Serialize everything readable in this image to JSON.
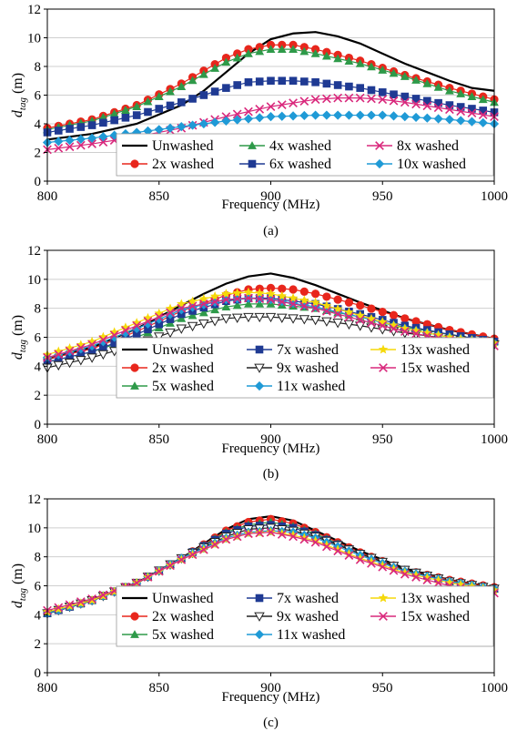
{
  "chart_data": [
    {
      "type": "line",
      "caption": "(a)",
      "xlabel": "Frequency (MHz)",
      "ylabel_main": "d",
      "ylabel_sub": "tag",
      "ylabel_unit": " (m)",
      "xlim": [
        800,
        1000
      ],
      "ylim": [
        0,
        12
      ],
      "xticks": [
        800,
        850,
        900,
        950,
        1000
      ],
      "yticks": [
        0,
        2,
        4,
        6,
        8,
        10,
        12
      ],
      "grid": "horizontal",
      "legend_columns": [
        [
          "Unwashed",
          "2x washed"
        ],
        [
          "4x washed",
          "6x washed"
        ],
        [
          "8x washed",
          "10x washed"
        ]
      ],
      "series": [
        {
          "name": "Unwashed",
          "color": "#000000",
          "marker": "none",
          "x": [
            800,
            820,
            840,
            860,
            870,
            880,
            890,
            900,
            910,
            920,
            930,
            940,
            950,
            960,
            970,
            980,
            990,
            1000
          ],
          "y": [
            2.9,
            3.3,
            4.0,
            5.3,
            6.3,
            7.6,
            8.9,
            9.9,
            10.3,
            10.4,
            10.1,
            9.6,
            8.9,
            8.2,
            7.6,
            7.0,
            6.5,
            6.3
          ]
        },
        {
          "name": "2x washed",
          "color": "#e8261c",
          "marker": "circle",
          "x": [
            800,
            820,
            840,
            860,
            880,
            890,
            900,
            910,
            920,
            940,
            960,
            980,
            1000
          ],
          "y": [
            3.7,
            4.3,
            5.3,
            6.8,
            8.6,
            9.2,
            9.5,
            9.5,
            9.2,
            8.4,
            7.4,
            6.5,
            5.7
          ]
        },
        {
          "name": "4x washed",
          "color": "#2e9a49",
          "marker": "triangle-up",
          "x": [
            800,
            820,
            840,
            860,
            880,
            890,
            900,
            910,
            920,
            940,
            960,
            980,
            1000
          ],
          "y": [
            3.6,
            4.2,
            5.2,
            6.6,
            8.3,
            8.9,
            9.2,
            9.2,
            8.9,
            8.2,
            7.3,
            6.3,
            5.5
          ]
        },
        {
          "name": "6x washed",
          "color": "#1f3a93",
          "marker": "square",
          "x": [
            800,
            820,
            840,
            860,
            880,
            890,
            900,
            910,
            920,
            940,
            960,
            980,
            1000
          ],
          "y": [
            3.4,
            3.9,
            4.6,
            5.5,
            6.5,
            6.9,
            7.0,
            7.0,
            6.9,
            6.5,
            5.9,
            5.3,
            4.8
          ]
        },
        {
          "name": "8x washed",
          "color": "#d9287c",
          "marker": "x",
          "x": [
            800,
            820,
            840,
            860,
            880,
            900,
            920,
            930,
            940,
            950,
            960,
            980,
            1000
          ],
          "y": [
            2.2,
            2.6,
            3.1,
            3.7,
            4.5,
            5.2,
            5.7,
            5.8,
            5.8,
            5.7,
            5.5,
            5.0,
            4.5
          ]
        },
        {
          "name": "10x washed",
          "color": "#1f9ad6",
          "marker": "diamond",
          "x": [
            800,
            820,
            840,
            860,
            880,
            900,
            920,
            940,
            950,
            960,
            980,
            1000
          ],
          "y": [
            2.7,
            3.0,
            3.4,
            3.8,
            4.2,
            4.5,
            4.6,
            4.6,
            4.6,
            4.5,
            4.3,
            4.0
          ]
        }
      ]
    },
    {
      "type": "line",
      "caption": "(b)",
      "xlabel": "Frequency (MHz)",
      "ylabel_main": "d",
      "ylabel_sub": "tag",
      "ylabel_unit": " (m)",
      "xlim": [
        800,
        1000
      ],
      "ylim": [
        0,
        12
      ],
      "xticks": [
        800,
        850,
        900,
        950,
        1000
      ],
      "yticks": [
        0,
        2,
        4,
        6,
        8,
        10,
        12
      ],
      "grid": "horizontal",
      "legend_columns": [
        [
          "Unwashed",
          "2x washed",
          "5x washed"
        ],
        [
          "7x washed",
          "9x washed",
          "11x washed"
        ],
        [
          "13x washed",
          "15x washed"
        ]
      ],
      "series": [
        {
          "name": "Unwashed",
          "color": "#000000",
          "marker": "none",
          "x": [
            800,
            820,
            840,
            860,
            870,
            880,
            890,
            900,
            910,
            920,
            940,
            960,
            980,
            1000
          ],
          "y": [
            4.5,
            5.3,
            6.6,
            8.2,
            9.0,
            9.7,
            10.2,
            10.4,
            10.1,
            9.6,
            8.4,
            7.3,
            6.5,
            5.9
          ]
        },
        {
          "name": "2x washed",
          "color": "#e8261c",
          "marker": "circle",
          "x": [
            800,
            820,
            840,
            860,
            880,
            890,
            900,
            910,
            920,
            940,
            960,
            980,
            1000
          ],
          "y": [
            4.5,
            5.2,
            6.4,
            7.8,
            8.9,
            9.3,
            9.4,
            9.3,
            9.0,
            8.2,
            7.3,
            6.5,
            5.9
          ]
        },
        {
          "name": "5x washed",
          "color": "#2e9a49",
          "marker": "triangle-up",
          "x": [
            800,
            820,
            840,
            860,
            880,
            890,
            900,
            920,
            940,
            960,
            980,
            1000
          ],
          "y": [
            4.3,
            5.0,
            6.0,
            7.3,
            8.1,
            8.3,
            8.3,
            8.0,
            7.4,
            6.7,
            6.2,
            5.7
          ]
        },
        {
          "name": "7x washed",
          "color": "#1f3a93",
          "marker": "square",
          "x": [
            800,
            820,
            840,
            860,
            880,
            890,
            900,
            920,
            940,
            960,
            980,
            1000
          ],
          "y": [
            4.3,
            5.0,
            6.2,
            7.6,
            8.5,
            8.7,
            8.7,
            8.3,
            7.6,
            6.8,
            6.2,
            5.7
          ]
        },
        {
          "name": "9x washed",
          "color": "#222222",
          "marker": "triangle-down-open",
          "x": [
            800,
            820,
            840,
            860,
            880,
            890,
            900,
            920,
            940,
            960,
            980,
            1000
          ],
          "y": [
            3.9,
            4.6,
            5.5,
            6.6,
            7.3,
            7.4,
            7.4,
            7.2,
            6.8,
            6.3,
            5.9,
            5.5
          ]
        },
        {
          "name": "11x washed",
          "color": "#1f9ad6",
          "marker": "diamond",
          "x": [
            800,
            820,
            840,
            860,
            880,
            890,
            900,
            920,
            940,
            960,
            980,
            1000
          ],
          "y": [
            4.6,
            5.4,
            6.6,
            7.9,
            8.6,
            8.7,
            8.6,
            8.1,
            7.4,
            6.6,
            6.0,
            5.6
          ]
        },
        {
          "name": "13x washed",
          "color": "#f5d90a",
          "marker": "star",
          "x": [
            800,
            820,
            840,
            860,
            880,
            890,
            900,
            920,
            940,
            960,
            980,
            1000
          ],
          "y": [
            4.8,
            5.7,
            7.0,
            8.3,
            9.0,
            9.1,
            9.0,
            8.4,
            7.5,
            6.6,
            6.0,
            5.6
          ]
        },
        {
          "name": "15x washed",
          "color": "#d9287c",
          "marker": "x",
          "x": [
            800,
            820,
            840,
            860,
            880,
            890,
            900,
            920,
            940,
            960,
            980,
            1000
          ],
          "y": [
            4.6,
            5.5,
            6.8,
            8.0,
            8.6,
            8.7,
            8.6,
            8.0,
            7.2,
            6.4,
            5.8,
            5.4
          ]
        }
      ]
    },
    {
      "type": "line",
      "caption": "(c)",
      "xlabel": "Frequency (MHz)",
      "ylabel_main": "d",
      "ylabel_sub": "tag",
      "ylabel_unit": " (m)",
      "xlim": [
        800,
        1000
      ],
      "ylim": [
        0,
        12
      ],
      "xticks": [
        800,
        850,
        900,
        950,
        1000
      ],
      "yticks": [
        0,
        2,
        4,
        6,
        8,
        10,
        12
      ],
      "grid": "horizontal",
      "legend_columns": [
        [
          "Unwashed",
          "2x washed",
          "5x washed"
        ],
        [
          "7x washed",
          "9x washed",
          "11x washed"
        ],
        [
          "13x washed",
          "15x washed"
        ]
      ],
      "series": [
        {
          "name": "Unwashed",
          "color": "#000000",
          "marker": "none",
          "x": [
            800,
            820,
            840,
            860,
            870,
            880,
            890,
            900,
            910,
            920,
            940,
            960,
            980,
            1000
          ],
          "y": [
            4.1,
            5.0,
            6.2,
            7.9,
            8.9,
            9.9,
            10.6,
            10.8,
            10.5,
            9.8,
            8.4,
            7.2,
            6.4,
            5.9
          ]
        },
        {
          "name": "2x washed",
          "color": "#e8261c",
          "marker": "circle",
          "x": [
            800,
            820,
            840,
            860,
            880,
            890,
            900,
            910,
            920,
            940,
            960,
            980,
            1000
          ],
          "y": [
            4.1,
            5.0,
            6.2,
            7.9,
            9.8,
            10.4,
            10.6,
            10.3,
            9.7,
            8.3,
            7.1,
            6.4,
            5.9
          ]
        },
        {
          "name": "5x washed",
          "color": "#2e9a49",
          "marker": "triangle-up",
          "x": [
            800,
            820,
            840,
            860,
            880,
            890,
            900,
            910,
            920,
            940,
            960,
            980,
            1000
          ],
          "y": [
            4.1,
            5.0,
            6.2,
            7.9,
            9.7,
            10.2,
            10.4,
            10.1,
            9.6,
            8.2,
            7.1,
            6.3,
            5.8
          ]
        },
        {
          "name": "7x washed",
          "color": "#1f3a93",
          "marker": "square",
          "x": [
            800,
            820,
            840,
            860,
            880,
            890,
            900,
            910,
            920,
            940,
            960,
            980,
            1000
          ],
          "y": [
            4.1,
            5.0,
            6.2,
            7.9,
            9.6,
            10.1,
            10.2,
            10.0,
            9.5,
            8.2,
            7.1,
            6.3,
            5.8
          ]
        },
        {
          "name": "9x washed",
          "color": "#222222",
          "marker": "triangle-down-open",
          "x": [
            800,
            820,
            840,
            860,
            880,
            890,
            900,
            910,
            920,
            940,
            960,
            980,
            1000
          ],
          "y": [
            4.1,
            5.0,
            6.2,
            7.9,
            9.4,
            9.9,
            10.0,
            9.8,
            9.4,
            8.2,
            7.1,
            6.3,
            5.8
          ]
        },
        {
          "name": "11x washed",
          "color": "#1f9ad6",
          "marker": "diamond",
          "x": [
            800,
            820,
            840,
            860,
            880,
            890,
            900,
            910,
            920,
            940,
            960,
            980,
            1000
          ],
          "y": [
            4.1,
            5.0,
            6.2,
            7.9,
            9.3,
            9.7,
            9.8,
            9.7,
            9.3,
            8.1,
            7.0,
            6.3,
            5.8
          ]
        },
        {
          "name": "13x washed",
          "color": "#f5d90a",
          "marker": "star",
          "x": [
            800,
            820,
            840,
            860,
            880,
            890,
            900,
            910,
            920,
            940,
            960,
            980,
            1000
          ],
          "y": [
            4.2,
            5.0,
            6.2,
            7.8,
            9.2,
            9.6,
            9.7,
            9.5,
            9.1,
            7.9,
            6.9,
            6.2,
            5.7
          ]
        },
        {
          "name": "15x washed",
          "color": "#d9287c",
          "marker": "x",
          "x": [
            800,
            820,
            840,
            860,
            880,
            890,
            900,
            910,
            920,
            940,
            960,
            980,
            1000
          ],
          "y": [
            4.3,
            5.1,
            6.2,
            7.8,
            9.2,
            9.6,
            9.7,
            9.4,
            9.0,
            7.8,
            6.8,
            6.0,
            5.5
          ]
        }
      ]
    }
  ]
}
